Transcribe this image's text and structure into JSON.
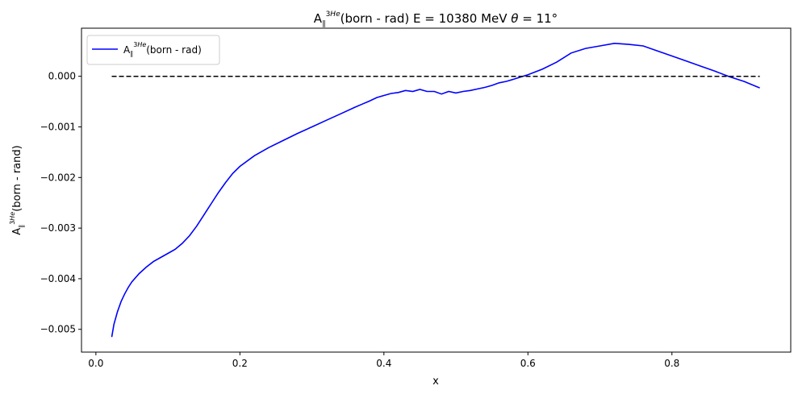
{
  "chart_data": {
    "type": "line",
    "title": "A_\\parallel^{3He}(born - rad) E = 10380 MeV $\\theta$ = 11$^\\circ$",
    "xlabel": "x",
    "ylabel": "A_\\parallel^{3He}(born - rand)",
    "xlim": [
      -0.02,
      0.965
    ],
    "ylim": [
      -0.00545,
      0.00095
    ],
    "x_ticks": [
      0.0,
      0.2,
      0.4,
      0.6,
      0.8
    ],
    "x_tick_labels": [
      "0.0",
      "0.2",
      "0.4",
      "0.6",
      "0.8"
    ],
    "y_ticks": [
      -0.005,
      -0.004,
      -0.003,
      -0.002,
      -0.001,
      0.0
    ],
    "y_tick_labels": [
      "−0.005",
      "−0.004",
      "−0.003",
      "−0.002",
      "−0.001",
      "0.000"
    ],
    "grid": false,
    "legend_position": "top-left",
    "series": [
      {
        "name": "A_\\parallel^{3He}(born - rad)",
        "color": "#0000ff",
        "style": "solid",
        "x": [
          0.022,
          0.025,
          0.03,
          0.035,
          0.04,
          0.045,
          0.05,
          0.06,
          0.07,
          0.08,
          0.09,
          0.1,
          0.11,
          0.12,
          0.13,
          0.14,
          0.15,
          0.16,
          0.17,
          0.18,
          0.19,
          0.2,
          0.22,
          0.24,
          0.26,
          0.28,
          0.3,
          0.32,
          0.34,
          0.36,
          0.37,
          0.38,
          0.39,
          0.4,
          0.41,
          0.42,
          0.43,
          0.44,
          0.45,
          0.46,
          0.47,
          0.48,
          0.49,
          0.5,
          0.51,
          0.52,
          0.53,
          0.54,
          0.55,
          0.56,
          0.57,
          0.58,
          0.6,
          0.62,
          0.64,
          0.66,
          0.68,
          0.7,
          0.72,
          0.74,
          0.76,
          0.78,
          0.8,
          0.82,
          0.84,
          0.86,
          0.88,
          0.9,
          0.922
        ],
        "y": [
          -0.00515,
          -0.0049,
          -0.00465,
          -0.00445,
          -0.0043,
          -0.00417,
          -0.00406,
          -0.0039,
          -0.00377,
          -0.00366,
          -0.00358,
          -0.0035,
          -0.00342,
          -0.0033,
          -0.00315,
          -0.00296,
          -0.00274,
          -0.00252,
          -0.0023,
          -0.0021,
          -0.00192,
          -0.00178,
          -0.00157,
          -0.00141,
          -0.00127,
          -0.00113,
          -0.001,
          -0.00087,
          -0.00074,
          -0.00061,
          -0.00055,
          -0.00049,
          -0.00042,
          -0.00038,
          -0.00034,
          -0.00032,
          -0.00028,
          -0.0003,
          -0.00026,
          -0.0003,
          -0.0003,
          -0.00035,
          -0.0003,
          -0.00033,
          -0.0003,
          -0.00028,
          -0.00025,
          -0.00022,
          -0.00018,
          -0.00013,
          -0.0001,
          -6e-05,
          3e-05,
          0.00014,
          0.00028,
          0.00046,
          0.00055,
          0.0006,
          0.00065,
          0.00063,
          0.0006,
          0.0005,
          0.0004,
          0.0003,
          0.0002,
          0.0001,
          -1e-05,
          -0.0001,
          -0.00023
        ]
      },
      {
        "name": "",
        "color": "#000000",
        "style": "dashed",
        "x": [
          0.022,
          0.922
        ],
        "y": [
          0.0,
          0.0
        ]
      }
    ]
  }
}
